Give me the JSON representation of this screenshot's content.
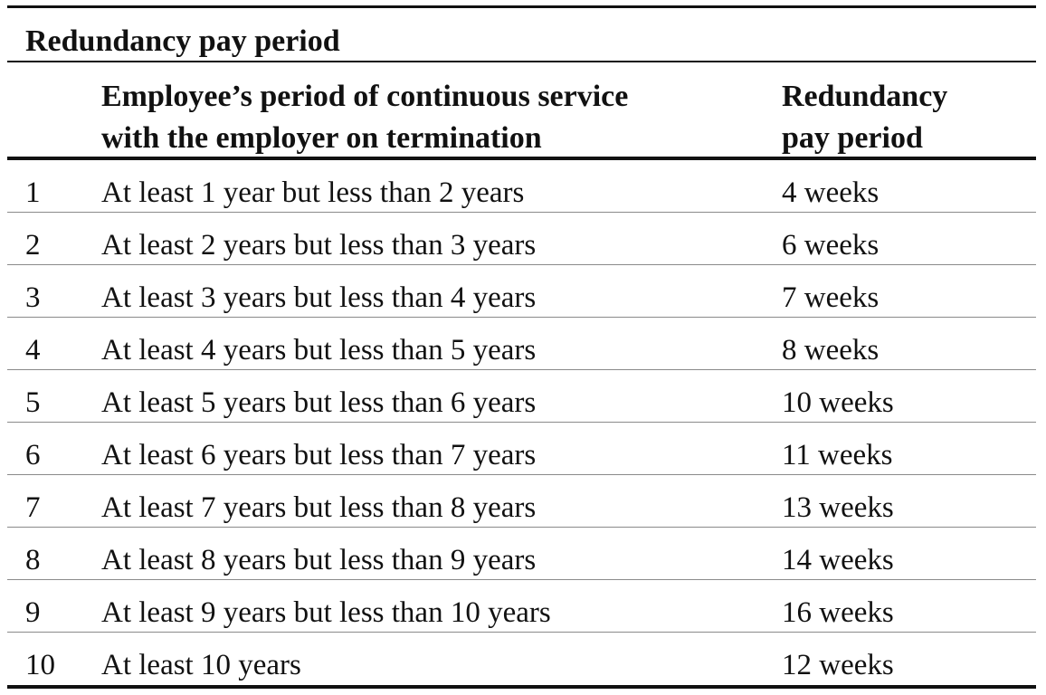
{
  "table": {
    "title": "Redundancy pay period",
    "headers": {
      "number": "",
      "service_line1": "Employee’s period of continuous service",
      "service_line2": "with the employer on termination",
      "pay_line1": "Redundancy",
      "pay_line2": "pay period"
    },
    "rows": [
      {
        "number": "1",
        "service": "At least 1 year but less than 2 years",
        "pay": "4 weeks"
      },
      {
        "number": "2",
        "service": "At least 2 years but less than 3 years",
        "pay": "6 weeks"
      },
      {
        "number": "3",
        "service": "At least 3 years but less than 4 years",
        "pay": "7 weeks"
      },
      {
        "number": "4",
        "service": "At least 4 years but less than 5 years",
        "pay": "8 weeks"
      },
      {
        "number": "5",
        "service": "At least 5 years but less than 6 years",
        "pay": "10 weeks"
      },
      {
        "number": "6",
        "service": "At least 6 years but less than 7 years",
        "pay": "11 weeks"
      },
      {
        "number": "7",
        "service": "At least 7 years but less than 8 years",
        "pay": "13 weeks"
      },
      {
        "number": "8",
        "service": "At least 8 years but less than 9 years",
        "pay": "14 weeks"
      },
      {
        "number": "9",
        "service": "At least 9 years but less than 10 years",
        "pay": "16 weeks"
      },
      {
        "number": "10",
        "service": "At least 10 years",
        "pay": "12 weeks"
      }
    ]
  }
}
